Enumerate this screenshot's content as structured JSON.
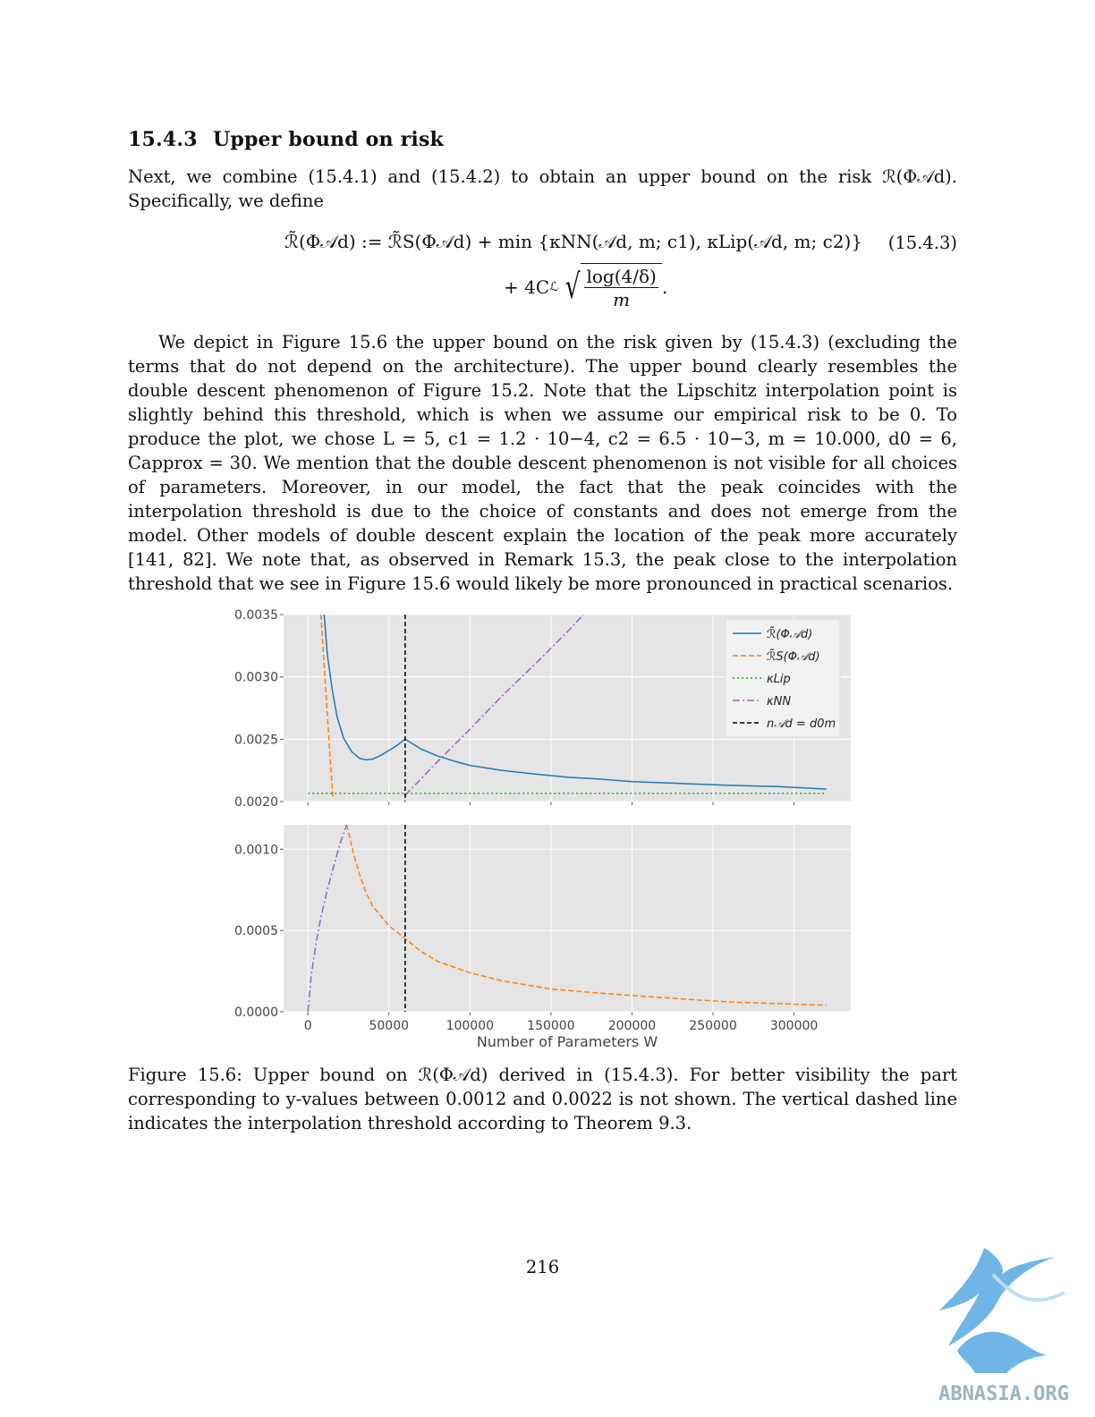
{
  "section": {
    "number": "15.4.3",
    "title": "Upper bound on risk"
  },
  "para1": "Next, we combine (15.4.1) and (15.4.2) to obtain an upper bound on the risk ℛ(Φ𝒜d). Specifically, we define",
  "equation": {
    "line1": "ℛ̃(Φ𝒜d) := ℛ̃S(Φ𝒜d) + min {κNN(𝒜d, m; c1), κLip(𝒜d, m; c2)}",
    "line2_prefix": "+ 4C",
    "line2_sub": "ℒ",
    "numerator": "log(4/δ)",
    "denominator": "m",
    "tail": ".",
    "label": "(15.4.3)"
  },
  "para2": "We depict in Figure 15.6 the upper bound on the risk given by (15.4.3) (excluding the terms that do not depend on the architecture). The upper bound clearly resembles the double descent phenomenon of Figure 15.2. Note that the Lipschitz interpolation point is slightly behind this threshold, which is when we assume our empirical risk to be 0. To produce the plot, we chose L = 5, c1 = 1.2 · 10−4, c2 = 6.5 · 10−3, m = 10.000, d0 = 6, Capprox = 30. We mention that the double descent phenomenon is not visible for all choices of parameters. Moreover, in our model, the fact that the peak coincides with the interpolation threshold is due to the choice of constants and does not emerge from the model. Other models of double descent explain the location of the peak more accurately [141, 82]. We note that, as observed in Remark 15.3, the peak close to the interpolation threshold that we see in Figure 15.6 would likely be more pronounced in practical scenarios.",
  "caption": "Figure 15.6: Upper bound on ℛ(Φ𝒜d) derived in (15.4.3). For better visibility the part corresponding to y-values between 0.0012 and 0.0022 is not shown. The vertical dashed line indicates the interpolation threshold according to Theorem 9.3.",
  "page_number": "216",
  "watermark_text": "ABNASIA.ORG",
  "colors": {
    "risk": "#1f77b4",
    "empirical": "#ff7f0e",
    "lip": "#2ca02c",
    "nn": "#9467bd",
    "threshold": "#000000",
    "plot_bg": "#e5e5e5"
  },
  "chart_data": [
    {
      "type": "line",
      "panel": "top",
      "xlim": [
        -15000,
        335000
      ],
      "ylim": [
        0.002,
        0.0035
      ],
      "yticks": [
        "0.0020",
        "0.0025",
        "0.0030",
        "0.0035"
      ],
      "grid": true,
      "legend_position": "top-right",
      "legend": [
        "ℛ̃(Φ𝒜d)",
        "ℛ̃S(Φ𝒜d)",
        "κLip",
        "κNN",
        "n𝒜d = d0m"
      ],
      "threshold_x": 60000,
      "series": [
        {
          "name": "ℛ̃(Φ𝒜d)",
          "style": "solid",
          "x": [
            10000,
            12000,
            15000,
            18000,
            22000,
            27000,
            32000,
            36000,
            40000,
            45000,
            50000,
            55000,
            60000,
            65000,
            70000,
            80000,
            90000,
            100000,
            120000,
            140000,
            160000,
            180000,
            200000,
            230000,
            260000,
            290000,
            320000
          ],
          "y": [
            0.0035,
            0.00318,
            0.0029,
            0.00268,
            0.00251,
            0.0024,
            0.002345,
            0.002335,
            0.00234,
            0.00237,
            0.00241,
            0.00245,
            0.0025,
            0.00246,
            0.00242,
            0.002365,
            0.002325,
            0.00229,
            0.00225,
            0.00222,
            0.002195,
            0.00218,
            0.00216,
            0.002145,
            0.00213,
            0.00212,
            0.0021
          ]
        },
        {
          "name": "ℛ̃S(Φ𝒜d)",
          "style": "dashed",
          "x": [
            8000,
            10000,
            12000,
            14000,
            15500
          ],
          "y": [
            0.0035,
            0.0031,
            0.0027,
            0.0023,
            0.00203
          ]
        },
        {
          "name": "κLip",
          "style": "dotted",
          "x": [
            0,
            320000
          ],
          "y": [
            0.002065,
            0.002065
          ]
        },
        {
          "name": "κNN",
          "style": "dashdot",
          "x": [
            60000,
            80000,
            100000,
            120000,
            140000,
            160000,
            170000
          ],
          "y": [
            0.00205,
            0.00232,
            0.00258,
            0.00285,
            0.0031,
            0.00336,
            0.0035
          ]
        }
      ]
    },
    {
      "type": "line",
      "panel": "bottom",
      "xlim": [
        -15000,
        335000
      ],
      "ylim": [
        0,
        0.00115
      ],
      "xticks": [
        0,
        50000,
        100000,
        150000,
        200000,
        250000,
        300000
      ],
      "yticks": [
        "0.0000",
        "0.0005",
        "0.0010"
      ],
      "xlabel": "Number of Parameters W",
      "grid": true,
      "threshold_x": 60000,
      "series": [
        {
          "name": "ℛ̃S(Φ𝒜d)",
          "style": "dashed",
          "x": [
            24000,
            28000,
            32000,
            36000,
            40000,
            50000,
            60000,
            70000,
            80000,
            100000,
            120000,
            150000,
            180000,
            200000,
            230000,
            260000,
            290000,
            320000
          ],
          "y": [
            0.00115,
            0.00098,
            0.00084,
            0.00073,
            0.00065,
            0.00053,
            0.00045,
            0.00037,
            0.00031,
            0.00024,
            0.00019,
            0.00014,
            0.000115,
            0.0001,
            8e-05,
            6e-05,
            5e-05,
            4e-05
          ]
        },
        {
          "name": "κNN",
          "style": "dashdot",
          "x": [
            0,
            2000,
            5000,
            8000,
            12000,
            16000,
            20000,
            24000
          ],
          "y": [
            0.0,
            0.00022,
            0.00042,
            0.00058,
            0.00075,
            0.0009,
            0.00104,
            0.00115
          ]
        }
      ]
    }
  ]
}
